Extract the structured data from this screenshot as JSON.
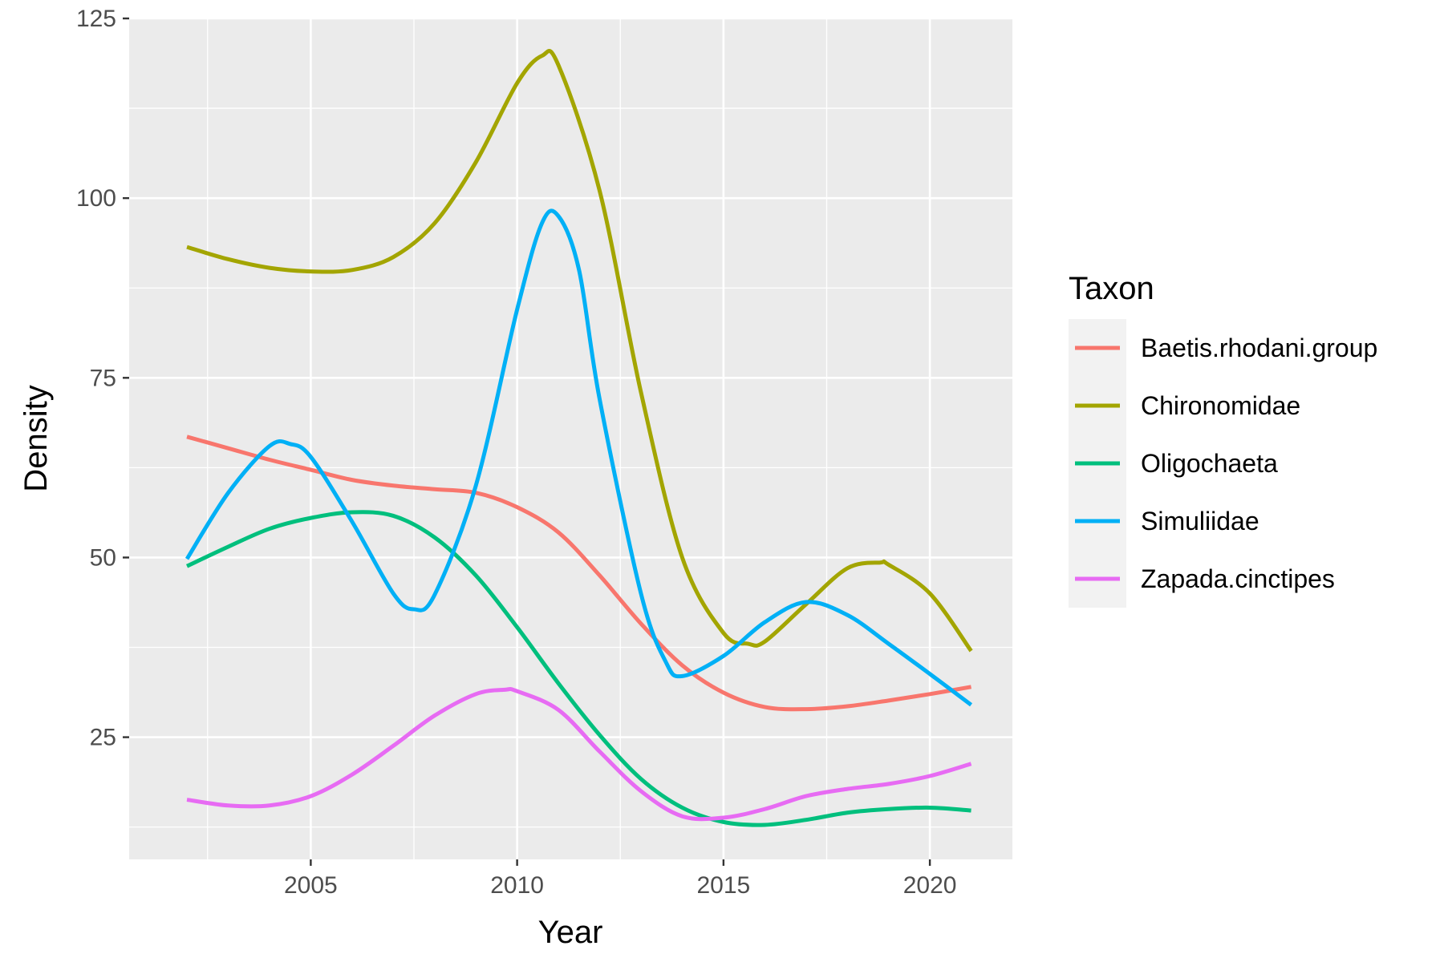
{
  "chart_data": {
    "type": "line",
    "xlabel": "Year",
    "ylabel": "Density",
    "xlim": [
      2000.6,
      2022
    ],
    "ylim": [
      8,
      125
    ],
    "x_ticks": [
      2005,
      2010,
      2015,
      2020
    ],
    "x_tick_labels": [
      "2005",
      "2010",
      "2015",
      "2020"
    ],
    "y_ticks": [
      25,
      50,
      75,
      100,
      125
    ],
    "y_tick_labels": [
      "25",
      "50",
      "75",
      "100",
      "125"
    ],
    "grid": true,
    "legend": {
      "title": "Taxon",
      "position": "right"
    },
    "series": [
      {
        "name": "Baetis.rhodani.group",
        "color": "#F8766D",
        "points": [
          [
            2002,
            66.8
          ],
          [
            2003,
            65.2
          ],
          [
            2004,
            63.6
          ],
          [
            2005,
            62.2
          ],
          [
            2006,
            60.8
          ],
          [
            2007,
            60.0
          ],
          [
            2008,
            59.5
          ],
          [
            2009,
            59.0
          ],
          [
            2010,
            57.0
          ],
          [
            2011,
            53.5
          ],
          [
            2012,
            47.5
          ],
          [
            2013,
            40.8
          ],
          [
            2014,
            35.0
          ],
          [
            2015,
            31.2
          ],
          [
            2016,
            29.2
          ],
          [
            2017,
            28.9
          ],
          [
            2018,
            29.3
          ],
          [
            2019,
            30.1
          ],
          [
            2020,
            31.0
          ],
          [
            2021,
            32.0
          ]
        ]
      },
      {
        "name": "Chironomidae",
        "color": "#A3A500",
        "points": [
          [
            2002,
            93.2
          ],
          [
            2003,
            91.5
          ],
          [
            2004,
            90.3
          ],
          [
            2005,
            89.8
          ],
          [
            2006,
            90.0
          ],
          [
            2007,
            91.8
          ],
          [
            2008,
            96.5
          ],
          [
            2009,
            105.0
          ],
          [
            2010,
            116.0
          ],
          [
            2010.6,
            119.8
          ],
          [
            2011,
            118.5
          ],
          [
            2012,
            101.0
          ],
          [
            2013,
            73.0
          ],
          [
            2014,
            50.0
          ],
          [
            2015,
            39.5
          ],
          [
            2015.6,
            38.0
          ],
          [
            2016,
            38.3
          ],
          [
            2017,
            43.5
          ],
          [
            2018,
            48.5
          ],
          [
            2018.8,
            49.3
          ],
          [
            2019,
            49.0
          ],
          [
            2020,
            45.0
          ],
          [
            2021,
            37.0
          ]
        ]
      },
      {
        "name": "Oligochaeta",
        "color": "#00BF7D",
        "points": [
          [
            2002,
            48.8
          ],
          [
            2003,
            51.5
          ],
          [
            2004,
            54.0
          ],
          [
            2005,
            55.5
          ],
          [
            2006,
            56.3
          ],
          [
            2007,
            55.8
          ],
          [
            2008,
            52.8
          ],
          [
            2009,
            47.5
          ],
          [
            2010,
            40.3
          ],
          [
            2011,
            32.5
          ],
          [
            2012,
            25.3
          ],
          [
            2013,
            19.2
          ],
          [
            2014,
            15.2
          ],
          [
            2015,
            13.2
          ],
          [
            2016,
            12.8
          ],
          [
            2017,
            13.5
          ],
          [
            2018,
            14.5
          ],
          [
            2019,
            15.0
          ],
          [
            2020,
            15.2
          ],
          [
            2021,
            14.8
          ]
        ]
      },
      {
        "name": "Simuliidae",
        "color": "#00B0F6",
        "points": [
          [
            2002,
            49.8
          ],
          [
            2003,
            59.0
          ],
          [
            2004,
            65.5
          ],
          [
            2004.5,
            65.8
          ],
          [
            2005,
            64.0
          ],
          [
            2006,
            55.0
          ],
          [
            2007,
            45.0
          ],
          [
            2007.5,
            42.8
          ],
          [
            2008,
            44.8
          ],
          [
            2009,
            60.0
          ],
          [
            2010,
            84.5
          ],
          [
            2010.6,
            96.5
          ],
          [
            2011,
            97.5
          ],
          [
            2011.5,
            90.0
          ],
          [
            2012,
            72.0
          ],
          [
            2013,
            45.0
          ],
          [
            2013.6,
            35.5
          ],
          [
            2014,
            33.5
          ],
          [
            2015,
            36.3
          ],
          [
            2016,
            41.0
          ],
          [
            2017,
            43.8
          ],
          [
            2018,
            42.0
          ],
          [
            2019,
            38.0
          ],
          [
            2020,
            33.8
          ],
          [
            2021,
            29.5
          ]
        ]
      },
      {
        "name": "Zapada.cinctipes",
        "color": "#E76BF3",
        "points": [
          [
            2002,
            16.3
          ],
          [
            2003,
            15.5
          ],
          [
            2004,
            15.5
          ],
          [
            2005,
            16.8
          ],
          [
            2006,
            19.8
          ],
          [
            2007,
            23.8
          ],
          [
            2008,
            28.0
          ],
          [
            2009,
            31.0
          ],
          [
            2009.7,
            31.6
          ],
          [
            2010,
            31.4
          ],
          [
            2011,
            28.8
          ],
          [
            2012,
            23.0
          ],
          [
            2013,
            17.5
          ],
          [
            2014,
            14.0
          ],
          [
            2015,
            13.8
          ],
          [
            2016,
            15.0
          ],
          [
            2017,
            16.8
          ],
          [
            2018,
            17.8
          ],
          [
            2019,
            18.5
          ],
          [
            2020,
            19.6
          ],
          [
            2021,
            21.3
          ]
        ]
      }
    ]
  }
}
